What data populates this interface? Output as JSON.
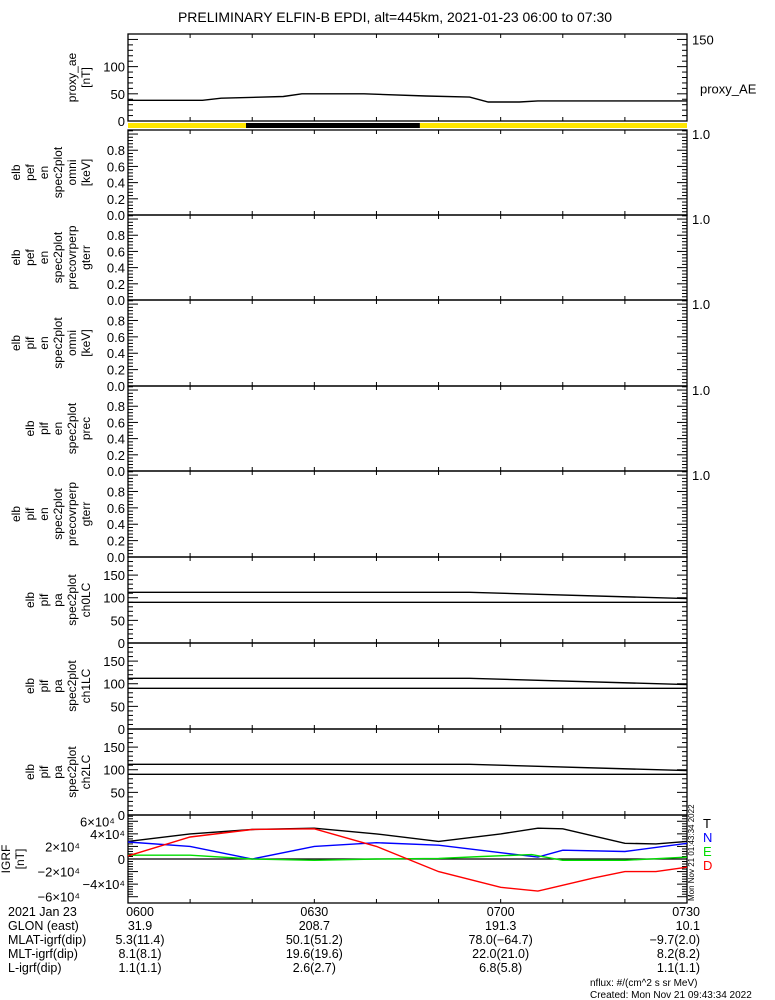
{
  "title": "PRELIMINARY ELFIN-B EPDI, alt=445km, 2021-01-23 06:00 to 07:30",
  "colors": {
    "yellow": "#ffe600",
    "black": "#000000",
    "N": "#0000ff",
    "E": "#00dd00",
    "D": "#ff0000",
    "T": "#000000"
  },
  "chart_data": [
    {
      "type": "line",
      "name": "proxy_ae",
      "ylabel": [
        "proxy_ae",
        "[nT]"
      ],
      "ylim": [
        0,
        160
      ],
      "yticks": [
        0,
        50,
        100,
        150
      ],
      "ytick_labels": [
        "0",
        "50",
        "100",
        "150"
      ],
      "legend": "proxy_AE",
      "series": [
        {
          "name": "proxy_AE",
          "color": "#000000",
          "x": [
            0,
            12,
            15,
            25,
            28,
            38,
            48,
            55,
            58,
            63,
            66,
            90
          ],
          "y": [
            38,
            38,
            42,
            45,
            50,
            50,
            46,
            44,
            35,
            35,
            37,
            37
          ]
        }
      ]
    },
    {
      "type": "bar",
      "name": "sunlight-bar",
      "segments": [
        {
          "from": 0,
          "to": 19,
          "color": "#ffe600"
        },
        {
          "from": 19,
          "to": 47,
          "color": "#000000"
        },
        {
          "from": 47,
          "to": 90,
          "color": "#ffe600"
        }
      ]
    },
    {
      "type": "line",
      "name": "elb_pef_en_omni",
      "ylabel": [
        "elb",
        "pef",
        "en",
        "spec2plot",
        "omni",
        "[keV]"
      ],
      "ylim": [
        0,
        1.05
      ],
      "yticks": [
        0,
        0.2,
        0.4,
        0.6,
        0.8,
        1.0
      ],
      "ytick_labels": [
        "0.0",
        "0.2",
        "0.4",
        "0.6",
        "0.8",
        "1.0"
      ],
      "series": []
    },
    {
      "type": "line",
      "name": "elb_pef_en_precovrperp",
      "ylabel": [
        "elb",
        "pef",
        "en",
        "spec2plot",
        "precovrperp",
        "gterr"
      ],
      "ylim": [
        0,
        1.05
      ],
      "yticks": [
        0,
        0.2,
        0.4,
        0.6,
        0.8,
        1.0
      ],
      "ytick_labels": [
        "0.0",
        "0.2",
        "0.4",
        "0.6",
        "0.8",
        "1.0"
      ],
      "series": []
    },
    {
      "type": "line",
      "name": "elb_pif_en_omni",
      "ylabel": [
        "elb",
        "pif",
        "en",
        "spec2plot",
        "omni",
        "[keV]"
      ],
      "ylim": [
        0,
        1.05
      ],
      "yticks": [
        0,
        0.2,
        0.4,
        0.6,
        0.8,
        1.0
      ],
      "ytick_labels": [
        "0.0",
        "0.2",
        "0.4",
        "0.6",
        "0.8",
        "1.0"
      ],
      "series": []
    },
    {
      "type": "line",
      "name": "elb_pif_en_prec",
      "ylabel": [
        "elb",
        "pif",
        "en",
        "spec2plot",
        "prec"
      ],
      "ylim": [
        0,
        1.05
      ],
      "yticks": [
        0,
        0.2,
        0.4,
        0.6,
        0.8,
        1.0
      ],
      "ytick_labels": [
        "0.0",
        "0.2",
        "0.4",
        "0.6",
        "0.8",
        "1.0"
      ],
      "series": []
    },
    {
      "type": "line",
      "name": "elb_pif_en_precovrperp",
      "ylabel": [
        "elb",
        "pif",
        "en",
        "spec2plot",
        "precovrperp",
        "gterr"
      ],
      "ylim": [
        0,
        1.05
      ],
      "yticks": [
        0,
        0.2,
        0.4,
        0.6,
        0.8,
        1.0
      ],
      "ytick_labels": [
        "0.0",
        "0.2",
        "0.4",
        "0.6",
        "0.8",
        "1.0"
      ],
      "series": []
    },
    {
      "type": "line",
      "name": "elb_pif_pa_ch0LC",
      "ylabel": [
        "elb",
        "pif",
        "pa",
        "spec2plot",
        "ch0LC"
      ],
      "ylim": [
        0,
        190
      ],
      "yticks": [
        0,
        50,
        100,
        150
      ],
      "ytick_labels": [
        "0",
        "50",
        "100",
        "150"
      ],
      "series": [
        {
          "name": "loss-cone",
          "color": "#000000",
          "x": [
            0,
            55,
            90
          ],
          "y": [
            112,
            112,
            98
          ]
        },
        {
          "name": "anti-loss-cone",
          "color": "#000000",
          "x": [
            0,
            90
          ],
          "y": [
            90,
            90
          ]
        }
      ]
    },
    {
      "type": "line",
      "name": "elb_pif_pa_ch1LC",
      "ylabel": [
        "elb",
        "pif",
        "pa",
        "spec2plot",
        "ch1LC"
      ],
      "ylim": [
        0,
        190
      ],
      "yticks": [
        0,
        50,
        100,
        150
      ],
      "ytick_labels": [
        "0",
        "50",
        "100",
        "150"
      ],
      "series": [
        {
          "name": "loss-cone",
          "color": "#000000",
          "x": [
            0,
            55,
            90
          ],
          "y": [
            112,
            112,
            98
          ]
        },
        {
          "name": "anti-loss-cone",
          "color": "#000000",
          "x": [
            0,
            90
          ],
          "y": [
            90,
            90
          ]
        }
      ]
    },
    {
      "type": "line",
      "name": "elb_pif_pa_ch2LC",
      "ylabel": [
        "elb",
        "pif",
        "pa",
        "spec2plot",
        "ch2LC"
      ],
      "ylim": [
        0,
        190
      ],
      "yticks": [
        0,
        50,
        100,
        150
      ],
      "ytick_labels": [
        "0",
        "50",
        "100",
        "150"
      ],
      "series": [
        {
          "name": "loss-cone",
          "color": "#000000",
          "x": [
            0,
            55,
            90
          ],
          "y": [
            112,
            112,
            98
          ]
        },
        {
          "name": "anti-loss-cone",
          "color": "#000000",
          "x": [
            0,
            90
          ],
          "y": [
            90,
            90
          ]
        }
      ]
    },
    {
      "type": "line",
      "name": "IGRF",
      "ylabel": [
        "IGRF",
        "[nT]"
      ],
      "ylim": [
        -70000,
        70000
      ],
      "yticks": [
        -60000,
        -40000,
        -20000,
        0,
        20000,
        40000,
        60000
      ],
      "ytick_labels": [
        "−6×10⁴",
        "−4×10⁴",
        "−2×10⁴",
        "0",
        "2×10⁴",
        "4×10⁴",
        "6×10⁴"
      ],
      "zero_line": true,
      "stamp": "Mon Nov 21 01:43:34 2022",
      "series": [
        {
          "name": "T",
          "color": "#000000",
          "x": [
            0,
            10,
            20,
            30,
            40,
            50,
            60,
            66,
            70,
            80,
            85,
            90
          ],
          "y": [
            28000,
            40000,
            47000,
            49000,
            40000,
            28000,
            40000,
            49000,
            48000,
            25000,
            24000,
            28000
          ]
        },
        {
          "name": "N",
          "color": "#0000ff",
          "x": [
            0,
            10,
            20,
            30,
            40,
            50,
            60,
            66,
            70,
            80,
            90
          ],
          "y": [
            27000,
            20000,
            0,
            20000,
            26000,
            22000,
            10000,
            3000,
            14000,
            12000,
            25000
          ]
        },
        {
          "name": "E",
          "color": "#00dd00",
          "x": [
            0,
            10,
            20,
            30,
            40,
            50,
            57,
            65,
            70,
            80,
            90
          ],
          "y": [
            6000,
            6000,
            0,
            -2000,
            0,
            1000,
            4000,
            7000,
            -2000,
            -2000,
            3000
          ]
        },
        {
          "name": "D",
          "color": "#ff0000",
          "x": [
            0,
            10,
            20,
            30,
            40,
            50,
            60,
            66,
            75,
            80,
            85,
            90
          ],
          "y": [
            5000,
            35000,
            47000,
            48000,
            20000,
            -20000,
            -45000,
            -51000,
            -30000,
            -20000,
            -20000,
            -13000
          ]
        }
      ]
    }
  ],
  "x_axis": {
    "unit": "minutes after 06:00",
    "xlim": [
      0,
      90
    ],
    "ticks": [
      0,
      30,
      60,
      90
    ]
  },
  "info_table": {
    "row_labels": [
      "2021 Jan 23",
      "GLON (east)",
      "MLAT-igrf(dip)",
      "MLT-igrf(dip)",
      "L-igrf(dip)"
    ],
    "columns": [
      [
        "0600",
        "31.9",
        "5.3(11.4)",
        "8.1(8.1)",
        "1.1(1.1)"
      ],
      [
        "0630",
        "208.7",
        "50.1(51.2)",
        "19.6(19.6)",
        "2.6(2.7)"
      ],
      [
        "0700",
        "191.3",
        "78.0(−64.7)",
        "22.0(21.0)",
        "6.8(5.8)"
      ],
      [
        "0730",
        "10.1",
        "−9.7(2.0)",
        "8.2(8.2)",
        "1.1(1.1)"
      ]
    ]
  },
  "footer": {
    "units": "nflux: #/(cm^2 s sr MeV)",
    "created": "Created: Mon Nov 21 09:43:34 2022"
  }
}
